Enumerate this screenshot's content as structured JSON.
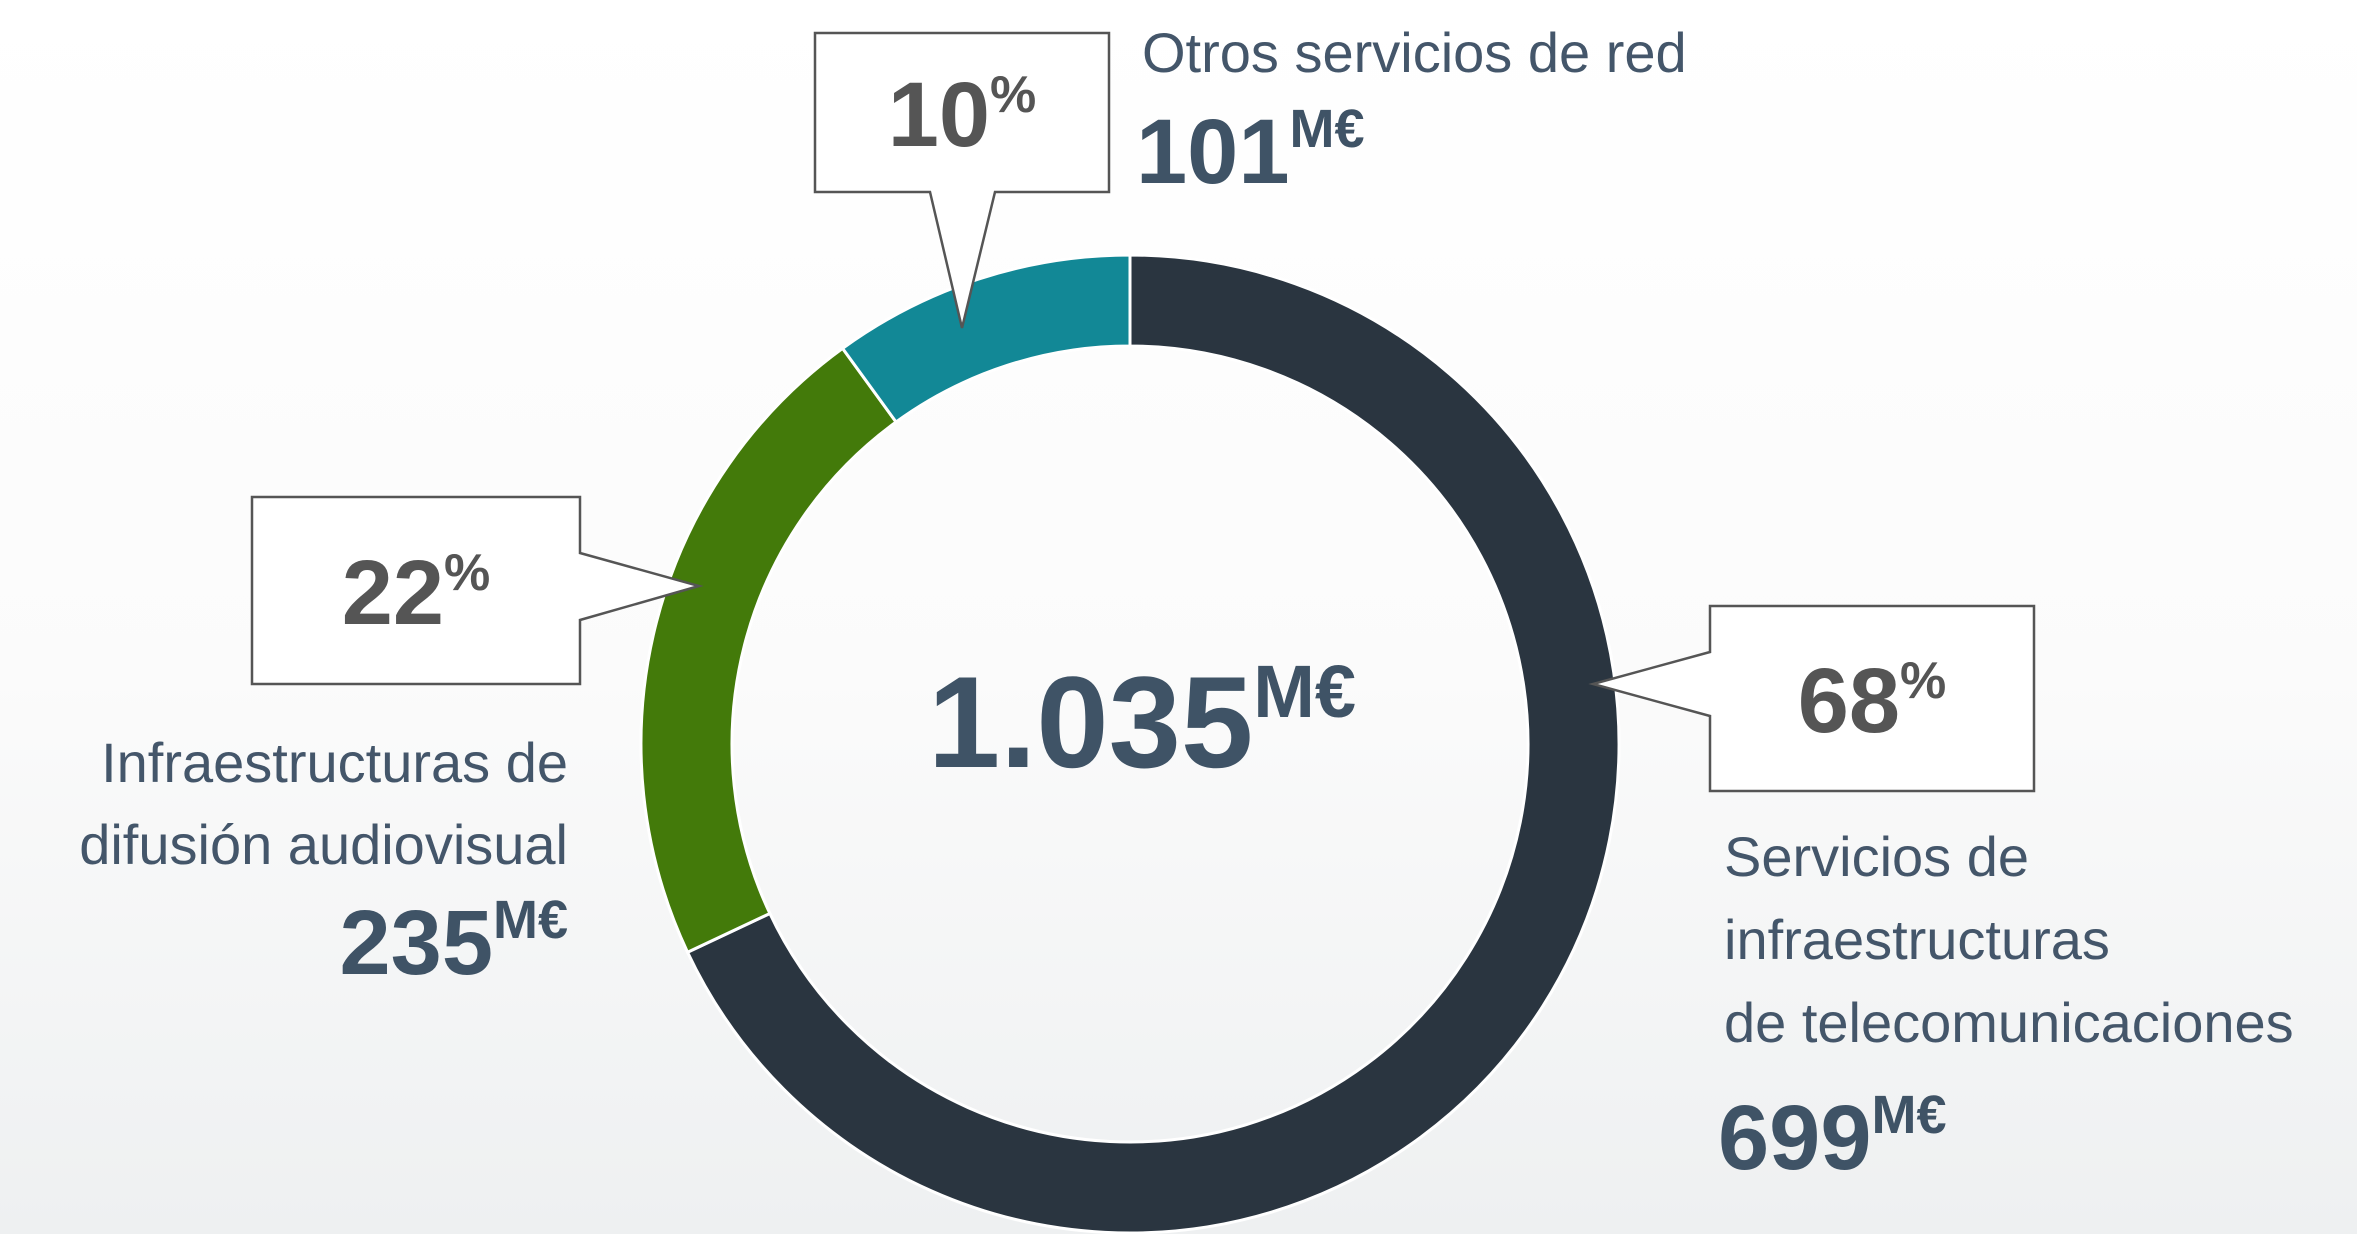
{
  "chart_data": {
    "type": "donut",
    "categories": [
      [
        "Servicios de",
        "infraestructuras",
        "de telecomunicaciones"
      ],
      [
        "Infraestructuras de",
        "difusión audiovisual"
      ],
      [
        "Otros servicios de red"
      ]
    ],
    "values": [
      68,
      22,
      10
    ],
    "value_unit": "%",
    "amounts": [
      699,
      235,
      101
    ],
    "amount_unit": "M€",
    "total": {
      "value": 1035,
      "label": "1.035"
    },
    "colors": [
      "#2a3540",
      "#437a0a",
      "#128896"
    ]
  }
}
